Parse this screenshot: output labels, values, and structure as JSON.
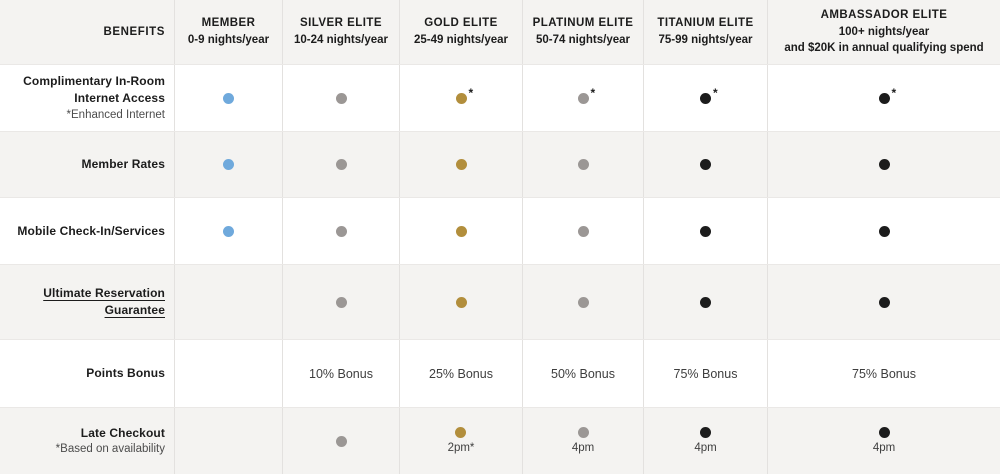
{
  "table": {
    "benefits_header": "BENEFITS",
    "colors": {
      "blue": "#6FA9DC",
      "gray": "#9B9795",
      "gold": "#B28E3C",
      "black": "#1C1C1C"
    },
    "tiers": [
      {
        "name": "MEMBER",
        "nights": "0-9 nights/year"
      },
      {
        "name": "SILVER ELITE",
        "nights": "10-24 nights/year"
      },
      {
        "name": "GOLD ELITE",
        "nights": "25-49 nights/year"
      },
      {
        "name": "PLATINUM ELITE",
        "nights": "50-74 nights/year"
      },
      {
        "name": "TITANIUM ELITE",
        "nights": "75-99 nights/year"
      },
      {
        "name": "AMBASSADOR ELITE",
        "nights": "100+ nights/year",
        "extra": "and $20K in annual qualifying spend"
      }
    ],
    "rows": [
      {
        "label": "Complimentary In-Room Internet Access",
        "sublabel": "*Enhanced Internet",
        "linked": false,
        "cells": [
          {
            "type": "dot",
            "color": "blue"
          },
          {
            "type": "dot",
            "color": "gray"
          },
          {
            "type": "dot",
            "color": "gold",
            "asterisk": "*"
          },
          {
            "type": "dot",
            "color": "gray",
            "asterisk": "*"
          },
          {
            "type": "dot",
            "color": "black",
            "asterisk": "*"
          },
          {
            "type": "dot",
            "color": "black",
            "asterisk": "*"
          }
        ]
      },
      {
        "label": "Member Rates",
        "linked": false,
        "cells": [
          {
            "type": "dot",
            "color": "blue"
          },
          {
            "type": "dot",
            "color": "gray"
          },
          {
            "type": "dot",
            "color": "gold"
          },
          {
            "type": "dot",
            "color": "gray"
          },
          {
            "type": "dot",
            "color": "black"
          },
          {
            "type": "dot",
            "color": "black"
          }
        ]
      },
      {
        "label": "Mobile Check-In/Services",
        "linked": false,
        "cells": [
          {
            "type": "dot",
            "color": "blue"
          },
          {
            "type": "dot",
            "color": "gray"
          },
          {
            "type": "dot",
            "color": "gold"
          },
          {
            "type": "dot",
            "color": "gray"
          },
          {
            "type": "dot",
            "color": "black"
          },
          {
            "type": "dot",
            "color": "black"
          }
        ]
      },
      {
        "label": "Ultimate Reservation Guarantee",
        "linked": true,
        "cells": [
          {
            "type": "empty"
          },
          {
            "type": "dot",
            "color": "gray"
          },
          {
            "type": "dot",
            "color": "gold"
          },
          {
            "type": "dot",
            "color": "gray"
          },
          {
            "type": "dot",
            "color": "black"
          },
          {
            "type": "dot",
            "color": "black"
          }
        ]
      },
      {
        "label": "Points Bonus",
        "linked": false,
        "cells": [
          {
            "type": "empty"
          },
          {
            "type": "text",
            "text": "10% Bonus"
          },
          {
            "type": "text",
            "text": "25% Bonus"
          },
          {
            "type": "text",
            "text": "50% Bonus"
          },
          {
            "type": "text",
            "text": "75% Bonus"
          },
          {
            "type": "text",
            "text": "75% Bonus"
          }
        ]
      },
      {
        "label": "Late Checkout",
        "sublabel": "*Based on availability",
        "linked": false,
        "cells": [
          {
            "type": "empty"
          },
          {
            "type": "dot",
            "color": "gray"
          },
          {
            "type": "dot",
            "color": "gold",
            "label": "2pm*"
          },
          {
            "type": "dot",
            "color": "gray",
            "label": "4pm"
          },
          {
            "type": "dot",
            "color": "black",
            "label": "4pm"
          },
          {
            "type": "dot",
            "color": "black",
            "label": "4pm"
          }
        ]
      }
    ]
  }
}
